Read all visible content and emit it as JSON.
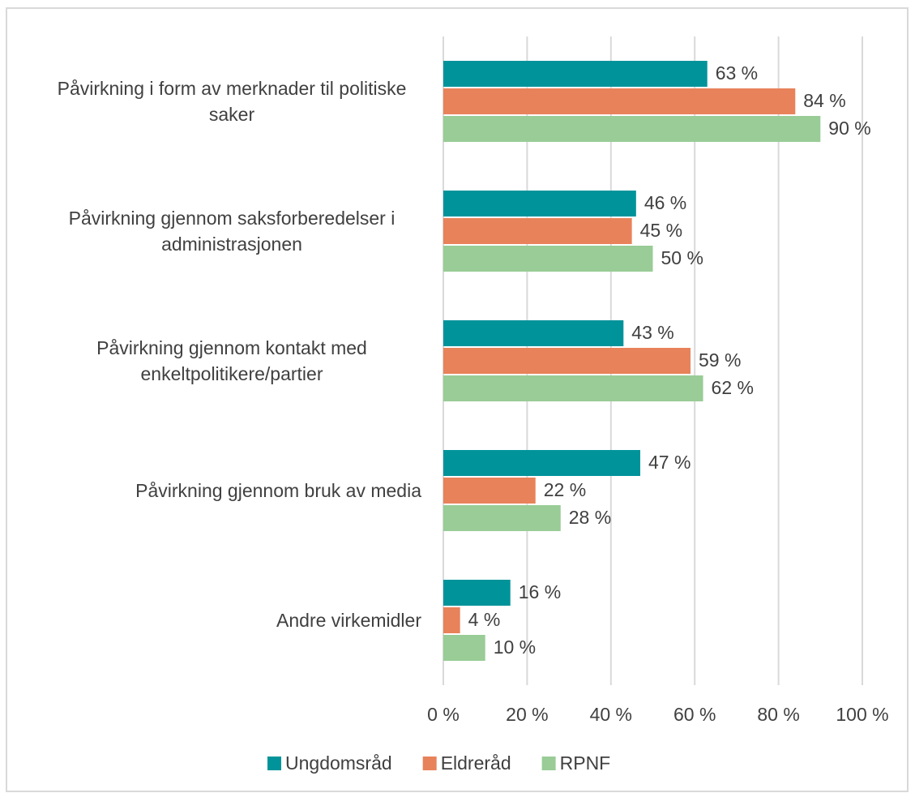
{
  "chart_data": {
    "type": "hbar",
    "categories": [
      "Påvirkning i form av merknader til politiske saker",
      "Påvirkning gjennom saksforberedelser i administrasjonen",
      "Påvirkning gjennom kontakt med enkeltpolitikere/partier",
      "Påvirkning gjennom bruk av media",
      "Andre virkemidler"
    ],
    "series": [
      {
        "name": "Ungdomsråd",
        "color": "#00939a",
        "values": [
          63,
          46,
          43,
          47,
          16
        ],
        "value_labels": [
          "63 %",
          "46 %",
          "43 %",
          "47 %",
          "16 %"
        ]
      },
      {
        "name": "Eldreråd",
        "color": "#e8825a",
        "values": [
          84,
          45,
          59,
          22,
          4
        ],
        "value_labels": [
          "84 %",
          "45 %",
          "59 %",
          "22 %",
          "4 %"
        ]
      },
      {
        "name": "RPNF",
        "color": "#99cc96",
        "values": [
          90,
          50,
          62,
          28,
          10
        ],
        "value_labels": [
          "90 %",
          "50 %",
          "62 %",
          "28 %",
          "10 %"
        ]
      }
    ],
    "xlim": [
      0,
      100
    ],
    "xticks": [
      {
        "value": 0,
        "label": "0 %"
      },
      {
        "value": 20,
        "label": "20 %"
      },
      {
        "value": 40,
        "label": "40 %"
      },
      {
        "value": 60,
        "label": "60 %"
      },
      {
        "value": 80,
        "label": "80 %"
      },
      {
        "value": 100,
        "label": "100 %"
      }
    ],
    "grid": true,
    "legend": "bottom"
  }
}
